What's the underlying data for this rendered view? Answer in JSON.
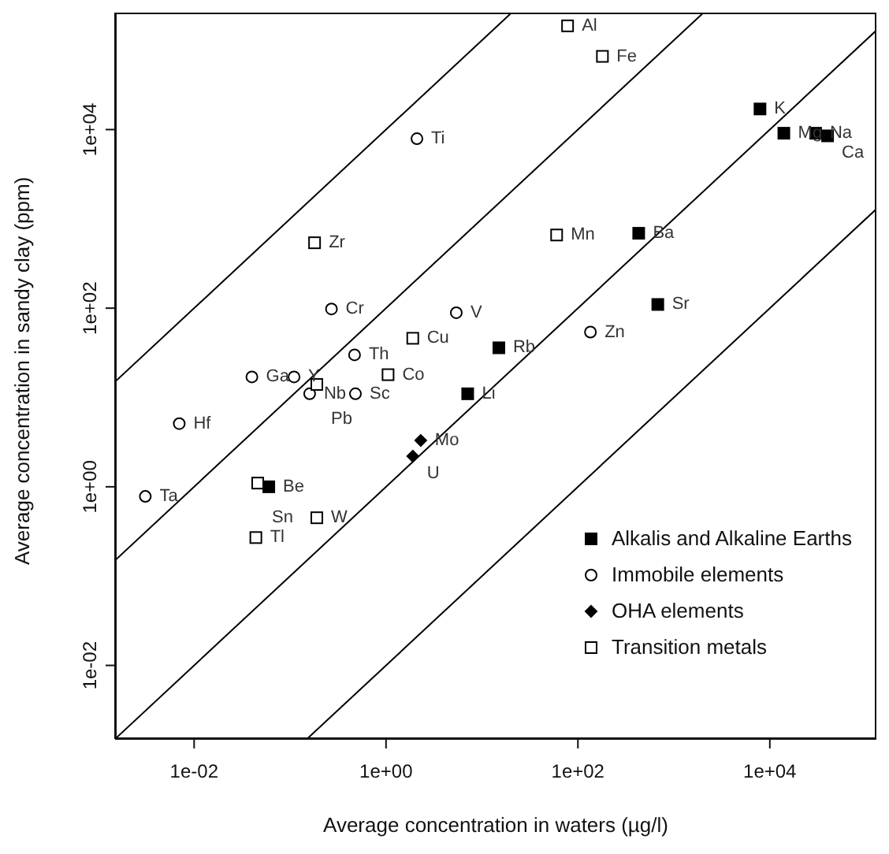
{
  "chart_data": {
    "type": "scatter",
    "xlabel": "Average concentration in waters (µg/l)",
    "ylabel": "Average concentration in sandy clay (ppm)",
    "log": "xy",
    "grid": false,
    "legend": "bottom right",
    "xlim": [
      0.0015,
      129000
    ],
    "ylim": [
      0.0015,
      204000
    ],
    "xticks": [
      {
        "value": 0.01,
        "label": "1e-02"
      },
      {
        "value": 1,
        "label": "1e+00"
      },
      {
        "value": 100,
        "label": "1e+02"
      },
      {
        "value": 10000,
        "label": "1e+04"
      }
    ],
    "yticks": [
      {
        "value": 0.01,
        "label": "1e-02"
      },
      {
        "value": 1,
        "label": "1e+00"
      },
      {
        "value": 100,
        "label": "1e+02"
      },
      {
        "value": 10000,
        "label": "1e+04"
      }
    ],
    "series": [
      {
        "type": "line",
        "color": "#000000",
        "marker": "none",
        "x": [
          0.0015,
          20.4
        ],
        "values": [
          15,
          204000
        ]
      },
      {
        "type": "line",
        "color": "#000000",
        "marker": "none",
        "x": [
          0.0015,
          2040
        ],
        "values": [
          0.15,
          204000
        ]
      },
      {
        "type": "line",
        "color": "#000000",
        "marker": "none",
        "x": [
          0.0015,
          129000
        ],
        "values": [
          0.0015,
          129000
        ]
      },
      {
        "type": "line",
        "color": "#000000",
        "marker": "none",
        "x": [
          0.15,
          129000
        ],
        "values": [
          0.0015,
          1290
        ]
      },
      {
        "name": "Alkalis and Alkaline Earths",
        "color": "#000000",
        "marker": "square",
        "x": [
          7900,
          14000,
          30000,
          40000,
          430,
          680,
          15,
          7.1,
          0.06
        ],
        "values": [
          17000,
          9100,
          9100,
          8500,
          690,
          110,
          36,
          11,
          1.0
        ],
        "value_labels": [
          "K",
          "Mg",
          "Na",
          "Ca",
          "Ba",
          "Sr",
          "Rb",
          "Li",
          "Be"
        ]
      },
      {
        "name": "Immobile elements",
        "color": "#000000",
        "marker": "circle",
        "x": [
          2.1,
          0.27,
          5.4,
          0.47,
          0.04,
          0.11,
          0.16,
          0.48,
          0.007,
          0.0031,
          135
        ],
        "values": [
          7900,
          98,
          89,
          30,
          17,
          17,
          11,
          11,
          5.1,
          0.78,
          54
        ],
        "value_labels": [
          "Ti",
          "Cr",
          "V",
          "Th",
          "Ga",
          "Y",
          "Nb",
          "Sc",
          "Hf",
          "Ta",
          "Zn"
        ]
      },
      {
        "name": "OHA elements",
        "color": "#000000",
        "marker": "diamond",
        "x": [
          2.3,
          1.9
        ],
        "values": [
          3.3,
          2.2
        ],
        "value_labels": [
          "Mo",
          "U"
        ]
      },
      {
        "name": "Transition metals",
        "color": "#000000",
        "marker": "square",
        "x": [
          0.18,
          1.9,
          0.19,
          1.05,
          0.046,
          0.19,
          0.044,
          78,
          180,
          60
        ],
        "values": [
          540,
          46,
          14,
          18,
          1.1,
          0.45,
          0.27,
          145000,
          66000,
          660
        ],
        "value_labels": [
          "Zr",
          "Cu",
          "Pb",
          "Co",
          "Sn",
          "W",
          "Tl",
          "Al",
          "Fe",
          "Mn"
        ]
      }
    ]
  }
}
